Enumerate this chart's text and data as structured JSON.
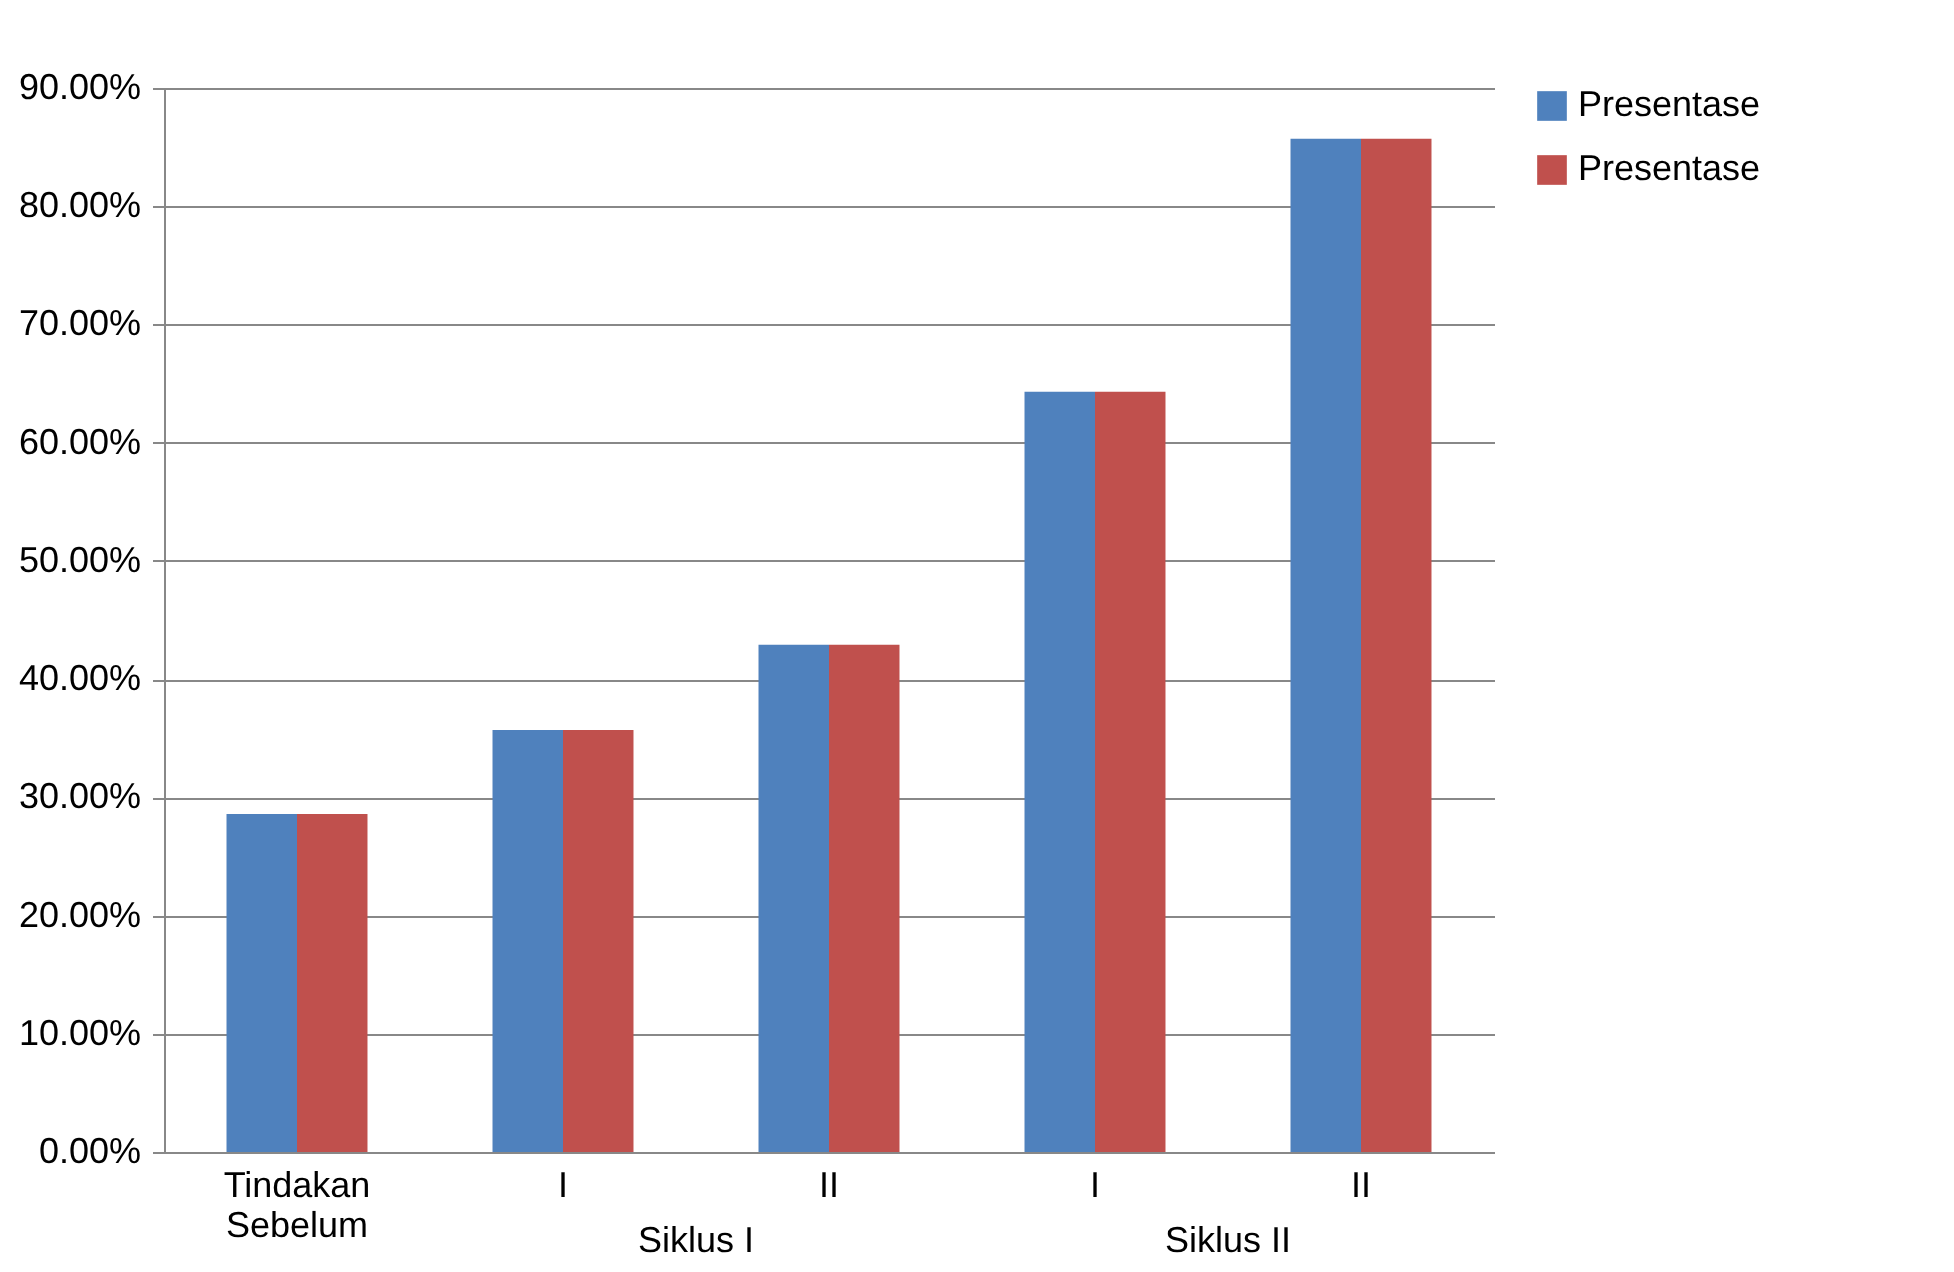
{
  "chart_data": {
    "type": "bar",
    "categories": [
      "Tindakan Sebelum",
      "I",
      "II",
      "I",
      "II"
    ],
    "series": [
      {
        "name": "Presentase",
        "color": "#4f81bd",
        "values": [
          28.6,
          35.7,
          42.9,
          64.3,
          85.7
        ]
      },
      {
        "name": "Presentase",
        "color": "#c0504d",
        "values": [
          28.6,
          35.7,
          42.9,
          64.3,
          85.7
        ]
      }
    ],
    "annotations": [
      "Siklus I",
      "Siklus II"
    ],
    "ylim": [
      0,
      90
    ],
    "yticks": [
      {
        "value": 0,
        "label": "0.00%"
      },
      {
        "value": 10,
        "label": "10.00%"
      },
      {
        "value": 20,
        "label": "20.00%"
      },
      {
        "value": 30,
        "label": "30.00%"
      },
      {
        "value": 40,
        "label": "40.00%"
      },
      {
        "value": 50,
        "label": "50.00%"
      },
      {
        "value": 60,
        "label": "60.00%"
      },
      {
        "value": 70,
        "label": "70.00%"
      },
      {
        "value": 80,
        "label": "80.00%"
      },
      {
        "value": 90,
        "label": "90.00%"
      }
    ],
    "grid": "y",
    "legend": "right"
  }
}
